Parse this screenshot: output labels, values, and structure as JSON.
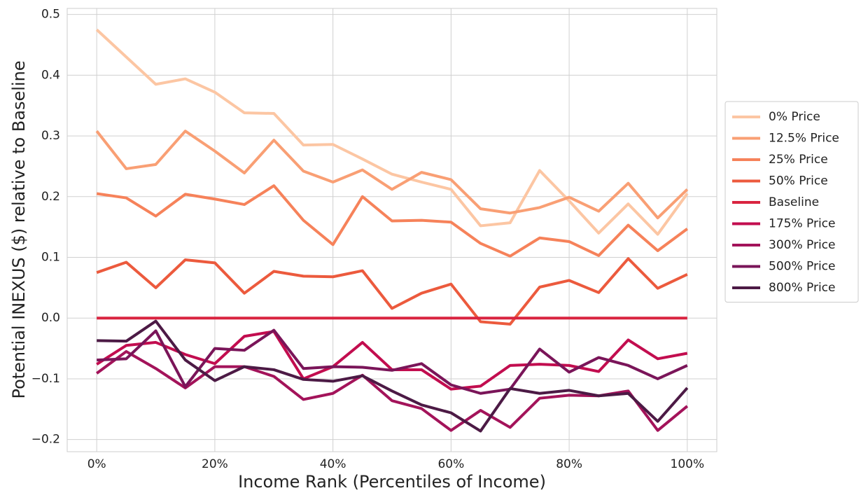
{
  "chart_data": {
    "type": "line",
    "xlabel": "Income Rank (Percentiles of Income)",
    "ylabel": "Potential INEXUS ($) relative to Baseline",
    "x": [
      0,
      5,
      10,
      15,
      20,
      25,
      30,
      35,
      40,
      45,
      50,
      55,
      60,
      65,
      70,
      75,
      80,
      85,
      90,
      95,
      100
    ],
    "series": [
      {
        "name": "0% Price",
        "color": "#fcc6a3",
        "values": [
          0.475,
          0.43,
          0.385,
          0.394,
          0.372,
          0.338,
          0.337,
          0.285,
          0.286,
          0.262,
          0.237,
          0.224,
          0.212,
          0.152,
          0.157,
          0.243,
          0.193,
          0.14,
          0.188,
          0.138,
          0.205
        ]
      },
      {
        "name": "12.5% Price",
        "color": "#f99f74",
        "values": [
          0.308,
          0.246,
          0.253,
          0.308,
          0.275,
          0.239,
          0.293,
          0.242,
          0.224,
          0.244,
          0.212,
          0.24,
          0.228,
          0.18,
          0.173,
          0.182,
          0.199,
          0.176,
          0.222,
          0.165,
          0.212
        ]
      },
      {
        "name": "25% Price",
        "color": "#f6825a",
        "values": [
          0.205,
          0.198,
          0.168,
          0.204,
          0.196,
          0.187,
          0.218,
          0.161,
          0.121,
          0.2,
          0.16,
          0.161,
          0.158,
          0.123,
          0.102,
          0.132,
          0.126,
          0.103,
          0.153,
          0.111,
          0.147
        ]
      },
      {
        "name": "50% Price",
        "color": "#ec5a3d",
        "values": [
          0.075,
          0.092,
          0.05,
          0.096,
          0.091,
          0.041,
          0.077,
          0.069,
          0.068,
          0.078,
          0.016,
          0.041,
          0.056,
          -0.006,
          -0.01,
          0.051,
          0.062,
          0.042,
          0.098,
          0.049,
          0.072
        ]
      },
      {
        "name": "Baseline",
        "color": "#d92440",
        "values": [
          0,
          0,
          0,
          0,
          0,
          0,
          0,
          0,
          0,
          0,
          0,
          0,
          0,
          0,
          0,
          0,
          0,
          0,
          0,
          0,
          0
        ]
      },
      {
        "name": "175% Price",
        "color": "#c20d4f",
        "values": [
          -0.076,
          -0.045,
          -0.04,
          -0.06,
          -0.075,
          -0.03,
          -0.022,
          -0.1,
          -0.08,
          -0.04,
          -0.085,
          -0.085,
          -0.117,
          -0.112,
          -0.078,
          -0.076,
          -0.078,
          -0.088,
          -0.036,
          -0.067,
          -0.058
        ]
      },
      {
        "name": "300% Price",
        "color": "#a3135a",
        "values": [
          -0.091,
          -0.055,
          -0.083,
          -0.115,
          -0.08,
          -0.08,
          -0.096,
          -0.134,
          -0.124,
          -0.094,
          -0.136,
          -0.149,
          -0.185,
          -0.152,
          -0.18,
          -0.132,
          -0.127,
          -0.128,
          -0.12,
          -0.185,
          -0.145
        ]
      },
      {
        "name": "500% Price",
        "color": "#7a1559",
        "values": [
          -0.069,
          -0.067,
          -0.021,
          -0.113,
          -0.05,
          -0.053,
          -0.02,
          -0.083,
          -0.08,
          -0.081,
          -0.086,
          -0.075,
          -0.11,
          -0.124,
          -0.117,
          -0.051,
          -0.089,
          -0.065,
          -0.078,
          -0.1,
          -0.078
        ]
      },
      {
        "name": "800% Price",
        "color": "#4c1a45",
        "values": [
          -0.037,
          -0.038,
          -0.005,
          -0.069,
          -0.103,
          -0.08,
          -0.085,
          -0.101,
          -0.104,
          -0.095,
          -0.12,
          -0.143,
          -0.156,
          -0.186,
          -0.116,
          -0.124,
          -0.119,
          -0.128,
          -0.124,
          -0.17,
          -0.115
        ]
      }
    ],
    "xlim": [
      -5,
      105
    ],
    "ylim": [
      -0.22,
      0.51
    ],
    "xticks": [
      {
        "value": 0,
        "label": "0%"
      },
      {
        "value": 20,
        "label": "20%"
      },
      {
        "value": 40,
        "label": "40%"
      },
      {
        "value": 60,
        "label": "60%"
      },
      {
        "value": 80,
        "label": "80%"
      },
      {
        "value": 100,
        "label": "100%"
      }
    ],
    "yticks": [
      {
        "value": -0.2,
        "label": "−0.2"
      },
      {
        "value": -0.1,
        "label": "−0.1"
      },
      {
        "value": 0,
        "label": "0.0"
      },
      0.1,
      0.2,
      0.3,
      0.4,
      0.5
    ],
    "grid": true,
    "legend": "outside right"
  }
}
